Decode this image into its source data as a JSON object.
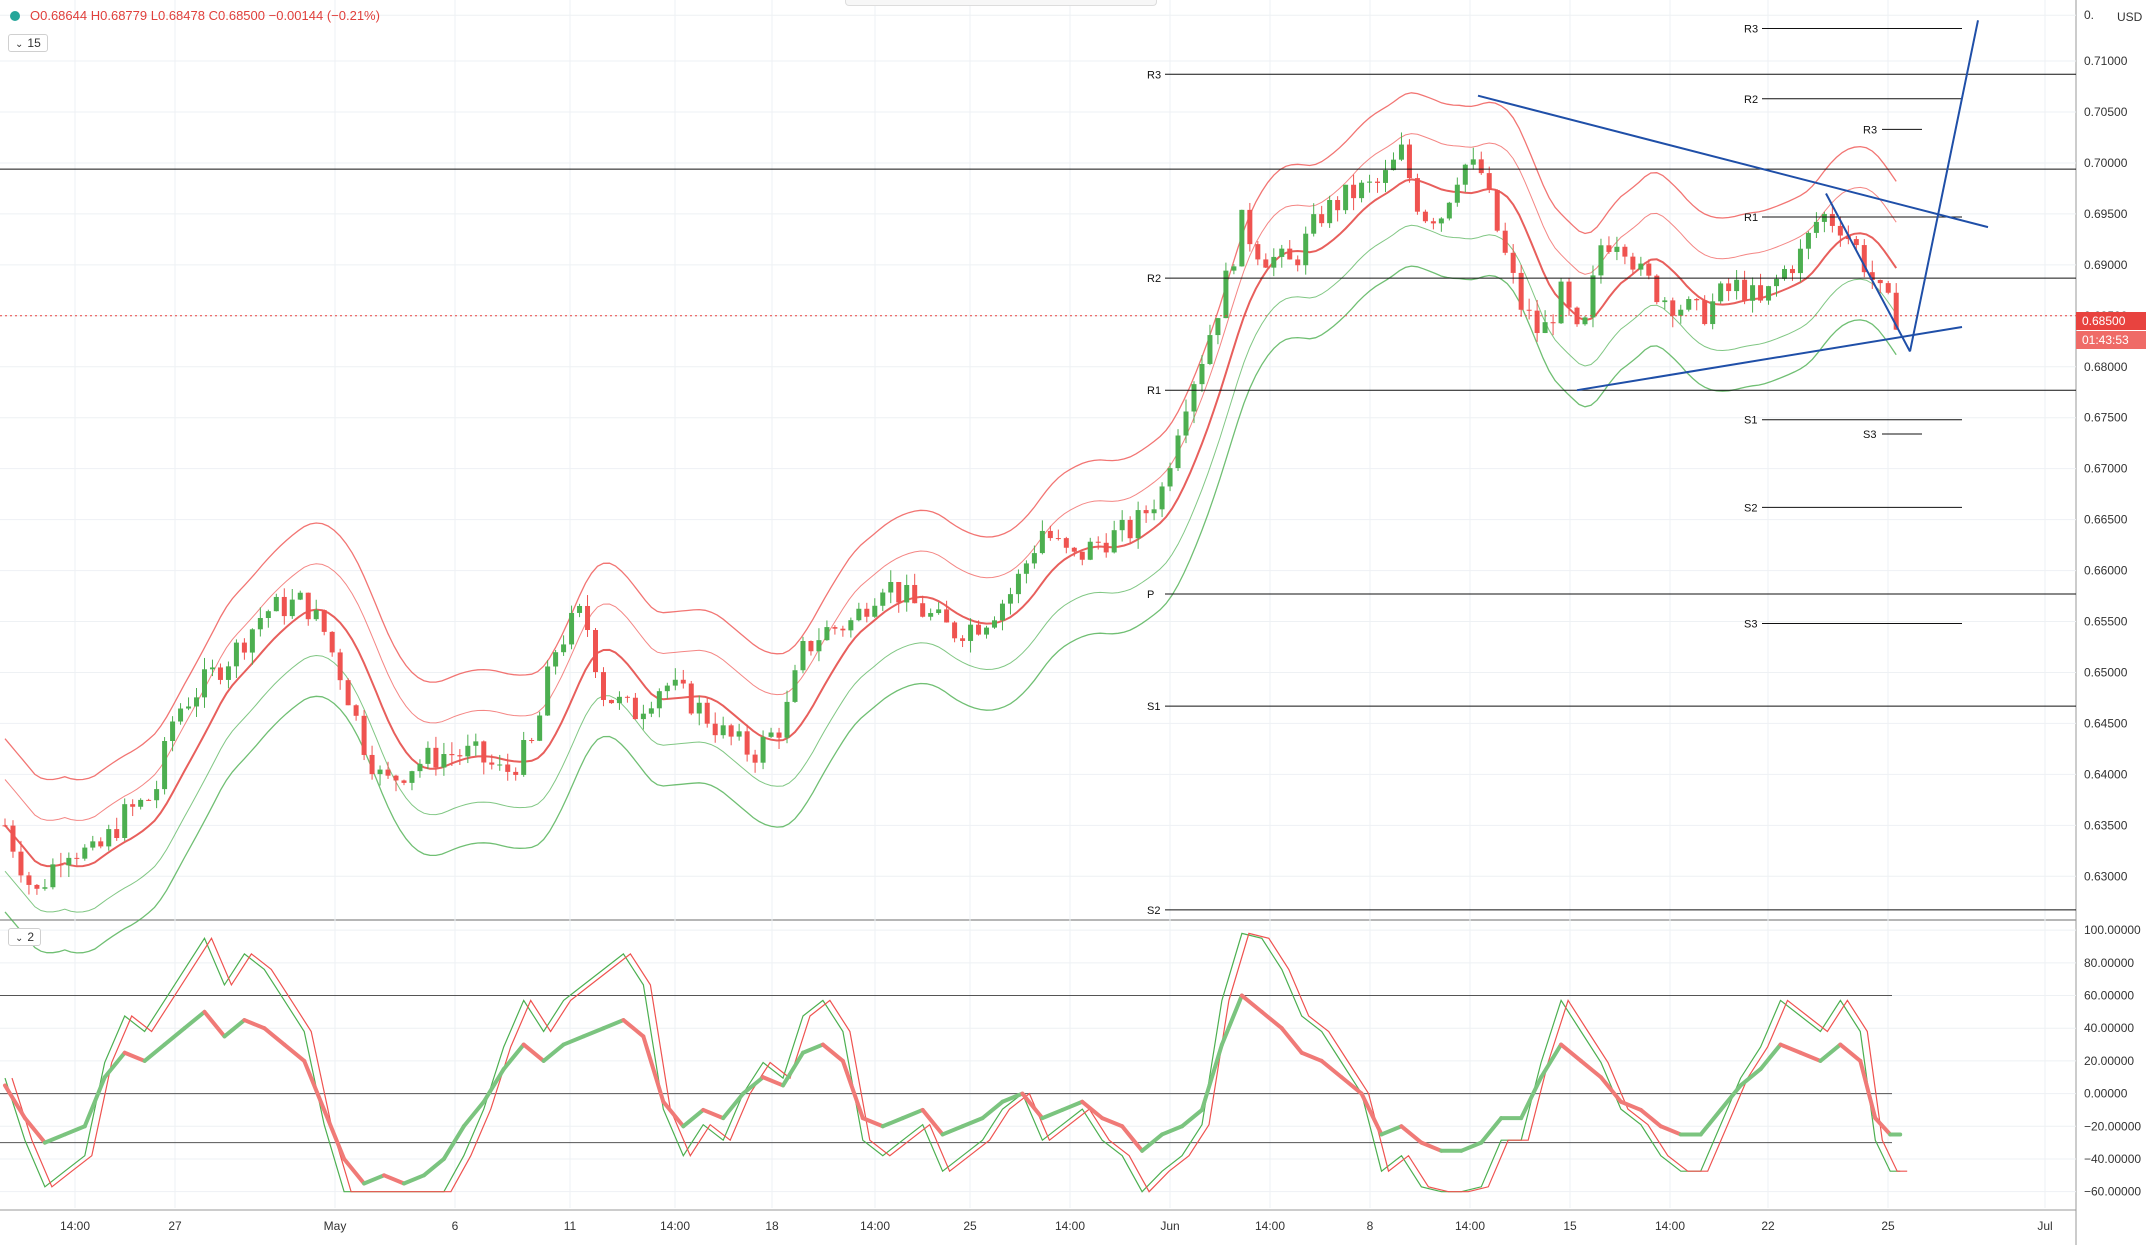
{
  "legend": {
    "open": "O0.68644",
    "high": "H0.68779",
    "low": "L0.68478",
    "close": "C0.68500",
    "change": "−0.00144 (−0.21%)"
  },
  "interval_chip": "15",
  "oscillator_chip": "2",
  "currency": "USD",
  "price_tag": "0.68500",
  "countdown_tag": "01:43:53",
  "colors": {
    "bullish": "#4caf50",
    "bearish": "#ef5350",
    "trendline": "#1f4fa8",
    "pivot_line": "#111111",
    "price_marker": "#e8433f"
  },
  "chart_data": [
    {
      "type": "candlestick",
      "title": "",
      "y_axis": {
        "ticks": [
          "0.",
          "0.71000",
          "0.70500",
          "0.70000",
          "0.69500",
          "0.69000",
          "0.68500",
          "0.68000",
          "0.67500",
          "0.67000",
          "0.66500",
          "0.66000",
          "0.65500",
          "0.65000",
          "0.64500",
          "0.64000",
          "0.63500",
          "0.63000"
        ],
        "range": [
          0.6262,
          0.7155
        ]
      },
      "x_axis": {
        "ticks": [
          "14:00",
          "27",
          "May",
          "6",
          "11",
          "14:00",
          "18",
          "14:00",
          "25",
          "14:00",
          "Jun",
          "14:00",
          "8",
          "14:00",
          "15",
          "14:00",
          "22",
          "25",
          "Jul"
        ]
      },
      "current_price": 0.685,
      "horizontal_levels": [
        {
          "label": "R3",
          "value": 0.7087
        },
        {
          "label": "R2",
          "value": 0.6887
        },
        {
          "label": "R1",
          "value": 0.6777
        },
        {
          "label": "P",
          "value": 0.6577
        },
        {
          "label": "S1",
          "value": 0.6467
        },
        {
          "label": "S2",
          "value": 0.6267
        },
        {
          "label": "",
          "value": 0.6994
        }
      ],
      "pivot_levels_right": [
        {
          "label": "R3",
          "value": 0.7132
        },
        {
          "label": "R2",
          "value": 0.7063
        },
        {
          "label": "R1",
          "value": 0.6947
        },
        {
          "label": "S1",
          "value": 0.6748
        },
        {
          "label": "S2",
          "value": 0.6662
        },
        {
          "label": "S3",
          "value": 0.6548
        }
      ],
      "pivot_levels_small": [
        {
          "label": "R3",
          "value": 0.7033
        },
        {
          "label": "S3",
          "value": 0.6734
        }
      ],
      "ohlc_path": [
        [
          0,
          0.635
        ],
        [
          30,
          0.628
        ],
        [
          60,
          0.633
        ],
        [
          90,
          0.632
        ],
        [
          120,
          0.636
        ],
        [
          150,
          0.638
        ],
        [
          170,
          0.646
        ],
        [
          200,
          0.649
        ],
        [
          230,
          0.652
        ],
        [
          260,
          0.656
        ],
        [
          300,
          0.657
        ],
        [
          320,
          0.654
        ],
        [
          340,
          0.649
        ],
        [
          360,
          0.643
        ],
        [
          380,
          0.639
        ],
        [
          410,
          0.641
        ],
        [
          440,
          0.642
        ],
        [
          470,
          0.642
        ],
        [
          500,
          0.64
        ],
        [
          530,
          0.643
        ],
        [
          550,
          0.652
        ],
        [
          570,
          0.655
        ],
        [
          580,
          0.656
        ],
        [
          600,
          0.648
        ],
        [
          630,
          0.646
        ],
        [
          660,
          0.649
        ],
        [
          690,
          0.647
        ],
        [
          720,
          0.644
        ],
        [
          750,
          0.642
        ],
        [
          780,
          0.645
        ],
        [
          800,
          0.652
        ],
        [
          820,
          0.654
        ],
        [
          850,
          0.655
        ],
        [
          880,
          0.659
        ],
        [
          920,
          0.656
        ],
        [
          950,
          0.654
        ],
        [
          980,
          0.655
        ],
        [
          1010,
          0.658
        ],
        [
          1040,
          0.664
        ],
        [
          1070,
          0.661
        ],
        [
          1100,
          0.663
        ],
        [
          1130,
          0.664
        ],
        [
          1160,
          0.668
        ],
        [
          1180,
          0.676
        ],
        [
          1200,
          0.681
        ],
        [
          1220,
          0.687
        ],
        [
          1240,
          0.694
        ],
        [
          1260,
          0.691
        ],
        [
          1290,
          0.69
        ],
        [
          1320,
          0.695
        ],
        [
          1350,
          0.697
        ],
        [
          1380,
          0.698
        ],
        [
          1400,
          0.701
        ],
        [
          1420,
          0.695
        ],
        [
          1440,
          0.695
        ],
        [
          1460,
          0.7
        ],
        [
          1480,
          0.699
        ],
        [
          1500,
          0.692
        ],
        [
          1520,
          0.686
        ],
        [
          1540,
          0.683
        ],
        [
          1560,
          0.687
        ],
        [
          1580,
          0.682
        ],
        [
          1600,
          0.692
        ],
        [
          1620,
          0.693
        ],
        [
          1640,
          0.689
        ],
        [
          1660,
          0.687
        ],
        [
          1680,
          0.686
        ],
        [
          1700,
          0.685
        ],
        [
          1720,
          0.687
        ],
        [
          1740,
          0.688
        ],
        [
          1760,
          0.686
        ],
        [
          1780,
          0.689
        ],
        [
          1800,
          0.691
        ],
        [
          1820,
          0.695
        ],
        [
          1840,
          0.694
        ],
        [
          1860,
          0.691
        ],
        [
          1880,
          0.687
        ],
        [
          1895,
          0.685
        ]
      ]
    },
    {
      "type": "line",
      "title": "",
      "y_axis": {
        "ticks": [
          "100.00000",
          "80.00000",
          "60.00000",
          "40.00000",
          "20.00000",
          "0.00000",
          "−20.00000",
          "−40.00000",
          "−60.00000"
        ],
        "range": [
          -70,
          105
        ]
      },
      "reference_lines": [
        60,
        0,
        -30
      ],
      "series": [
        {
          "values": [
            [
              0,
              5
            ],
            [
              20,
              -15
            ],
            [
              40,
              -30
            ],
            [
              60,
              -25
            ],
            [
              80,
              -20
            ],
            [
              100,
              10
            ],
            [
              120,
              25
            ],
            [
              140,
              20
            ],
            [
              160,
              30
            ],
            [
              180,
              40
            ],
            [
              200,
              50
            ],
            [
              220,
              35
            ],
            [
              240,
              45
            ],
            [
              260,
              40
            ],
            [
              280,
              30
            ],
            [
              300,
              20
            ],
            [
              320,
              -10
            ],
            [
              340,
              -40
            ],
            [
              360,
              -55
            ],
            [
              380,
              -50
            ],
            [
              400,
              -55
            ],
            [
              420,
              -50
            ],
            [
              440,
              -40
            ],
            [
              460,
              -20
            ],
            [
              480,
              -5
            ],
            [
              500,
              15
            ],
            [
              520,
              30
            ],
            [
              540,
              20
            ],
            [
              560,
              30
            ],
            [
              580,
              35
            ],
            [
              600,
              40
            ],
            [
              620,
              45
            ],
            [
              640,
              35
            ],
            [
              660,
              -5
            ],
            [
              680,
              -20
            ],
            [
              700,
              -10
            ],
            [
              720,
              -15
            ],
            [
              740,
              0
            ],
            [
              760,
              10
            ],
            [
              780,
              5
            ],
            [
              800,
              25
            ],
            [
              820,
              30
            ],
            [
              840,
              20
            ],
            [
              860,
              -15
            ],
            [
              880,
              -20
            ],
            [
              900,
              -15
            ],
            [
              920,
              -10
            ],
            [
              940,
              -25
            ],
            [
              960,
              -20
            ],
            [
              980,
              -15
            ],
            [
              1000,
              -5
            ],
            [
              1020,
              0
            ],
            [
              1040,
              -15
            ],
            [
              1060,
              -10
            ],
            [
              1080,
              -5
            ],
            [
              1100,
              -15
            ],
            [
              1120,
              -20
            ],
            [
              1140,
              -35
            ],
            [
              1160,
              -25
            ],
            [
              1180,
              -20
            ],
            [
              1200,
              -10
            ],
            [
              1220,
              30
            ],
            [
              1240,
              60
            ],
            [
              1260,
              50
            ],
            [
              1280,
              40
            ],
            [
              1300,
              25
            ],
            [
              1320,
              20
            ],
            [
              1340,
              10
            ],
            [
              1360,
              0
            ],
            [
              1380,
              -25
            ],
            [
              1400,
              -20
            ],
            [
              1420,
              -30
            ],
            [
              1440,
              -35
            ],
            [
              1460,
              -35
            ],
            [
              1480,
              -30
            ],
            [
              1500,
              -15
            ],
            [
              1520,
              -15
            ],
            [
              1540,
              10
            ],
            [
              1560,
              30
            ],
            [
              1580,
              20
            ],
            [
              1600,
              10
            ],
            [
              1620,
              -5
            ],
            [
              1640,
              -10
            ],
            [
              1660,
              -20
            ],
            [
              1680,
              -25
            ],
            [
              1700,
              -25
            ],
            [
              1720,
              -10
            ],
            [
              1740,
              5
            ],
            [
              1760,
              15
            ],
            [
              1780,
              30
            ],
            [
              1800,
              25
            ],
            [
              1820,
              20
            ],
            [
              1840,
              30
            ],
            [
              1860,
              20
            ],
            [
              1875,
              -15
            ],
            [
              1890,
              -25
            ],
            [
              1900,
              -25
            ]
          ]
        }
      ]
    }
  ]
}
